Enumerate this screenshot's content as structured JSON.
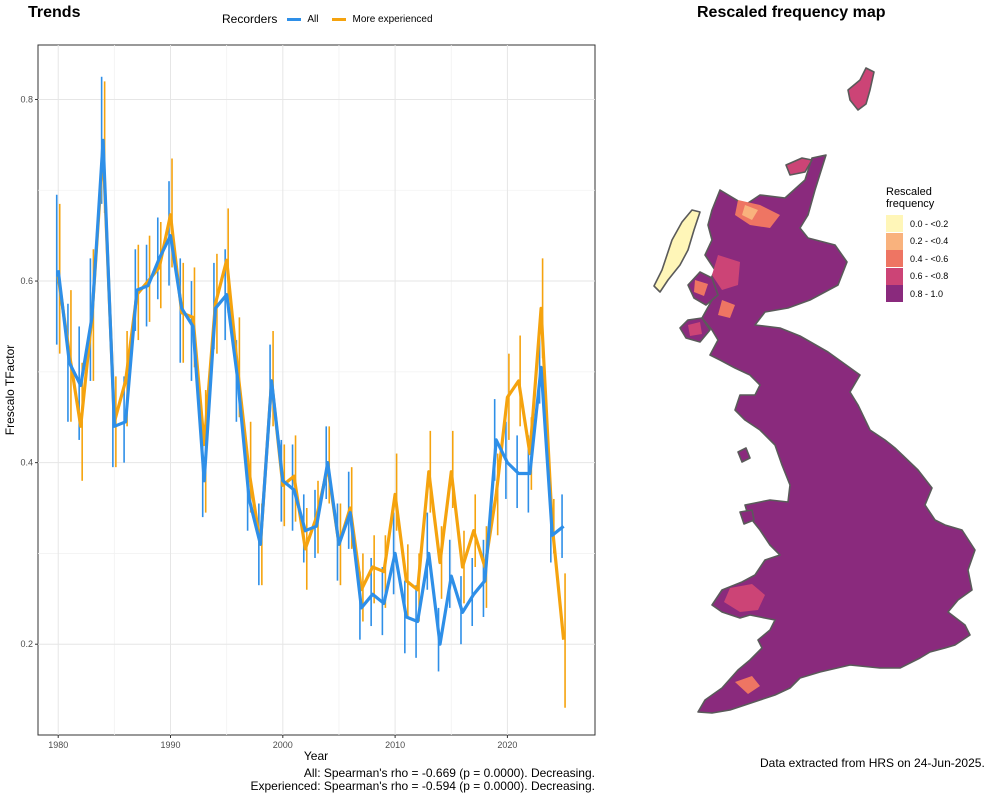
{
  "trends": {
    "title": "Trends",
    "legend": {
      "title": "Recorders",
      "items": [
        {
          "label": "All",
          "color": "#2E8FE8"
        },
        {
          "label": "More experienced",
          "color": "#F5A30E"
        }
      ]
    },
    "stats": {
      "all": "All: Spearman's rho = -0.669 (p = 0.0000). Decreasing.",
      "experienced": "Experienced: Spearman's rho = -0.594 (p = 0.0000). Decreasing."
    }
  },
  "map": {
    "title": "Rescaled frequency map",
    "legend_title": "Rescaled frequency",
    "legend": [
      {
        "label": "0.0 - <0.2",
        "color": "#FFF6B8"
      },
      {
        "label": "0.2 - <0.4",
        "color": "#F9B27D"
      },
      {
        "label": "0.4 - <0.6",
        "color": "#EE7563"
      },
      {
        "label": "0.6 - <0.8",
        "color": "#CC4476"
      },
      {
        "label": "0.8 - 1.0",
        "color": "#8A2A7D"
      }
    ],
    "credit": "Data extracted from HRS on 24-Jun-2025."
  },
  "chart_data": {
    "type": "line",
    "title": "Trends",
    "xlabel": "Year",
    "ylabel": "Frescalo TFactor",
    "xlim": [
      1978.2,
      2027.8
    ],
    "ylim": [
      0.1,
      0.86
    ],
    "xticks": [
      1980,
      1990,
      2000,
      2010,
      2020
    ],
    "yticks": [
      0.2,
      0.4,
      0.6,
      0.8
    ],
    "grid": true,
    "legend_position": "top",
    "x": [
      1980,
      1981,
      1982,
      1983,
      1984,
      1985,
      1986,
      1987,
      1988,
      1989,
      1990,
      1991,
      1992,
      1993,
      1994,
      1995,
      1996,
      1997,
      1998,
      1999,
      2000,
      2001,
      2002,
      2003,
      2004,
      2005,
      2006,
      2007,
      2008,
      2009,
      2010,
      2011,
      2012,
      2013,
      2014,
      2015,
      2016,
      2017,
      2018,
      2019,
      2020,
      2021,
      2022,
      2023,
      2024,
      2025
    ],
    "series": [
      {
        "name": "All",
        "color": "#2E8FE8",
        "values": [
          0.612,
          0.51,
          0.485,
          0.56,
          0.755,
          0.44,
          0.445,
          0.59,
          0.595,
          0.625,
          0.65,
          0.57,
          0.55,
          0.38,
          0.57,
          0.585,
          0.49,
          0.36,
          0.31,
          0.49,
          0.38,
          0.37,
          0.325,
          0.33,
          0.4,
          0.31,
          0.345,
          0.24,
          0.255,
          0.245,
          0.3,
          0.23,
          0.225,
          0.3,
          0.2,
          0.275,
          0.235,
          0.255,
          0.27,
          0.425,
          0.4,
          0.388,
          0.388,
          0.505,
          0.32,
          0.33
        ],
        "lower": [
          0.53,
          0.445,
          0.425,
          0.49,
          0.685,
          0.395,
          0.4,
          0.545,
          0.55,
          0.58,
          0.595,
          0.51,
          0.49,
          0.34,
          0.525,
          0.535,
          0.445,
          0.325,
          0.265,
          0.45,
          0.335,
          0.325,
          0.29,
          0.295,
          0.36,
          0.27,
          0.305,
          0.205,
          0.22,
          0.21,
          0.255,
          0.19,
          0.185,
          0.26,
          0.17,
          0.24,
          0.2,
          0.22,
          0.23,
          0.38,
          0.36,
          0.35,
          0.345,
          0.465,
          0.29,
          0.295
        ],
        "upper": [
          0.695,
          0.575,
          0.55,
          0.625,
          0.825,
          0.495,
          0.495,
          0.635,
          0.64,
          0.67,
          0.71,
          0.625,
          0.6,
          0.425,
          0.62,
          0.635,
          0.535,
          0.4,
          0.355,
          0.53,
          0.425,
          0.42,
          0.365,
          0.37,
          0.44,
          0.355,
          0.39,
          0.28,
          0.295,
          0.285,
          0.345,
          0.27,
          0.265,
          0.345,
          0.24,
          0.315,
          0.275,
          0.295,
          0.315,
          0.47,
          0.445,
          0.43,
          0.43,
          0.545,
          0.355,
          0.365
        ]
      },
      {
        "name": "More experienced",
        "color": "#F5A30E",
        "values": [
          0.605,
          0.52,
          0.44,
          0.56,
          0.745,
          0.445,
          0.49,
          0.585,
          0.6,
          0.615,
          0.673,
          0.565,
          0.56,
          0.42,
          0.575,
          0.623,
          0.5,
          0.39,
          0.31,
          0.49,
          0.375,
          0.385,
          0.305,
          0.34,
          0.395,
          0.31,
          0.35,
          0.26,
          0.285,
          0.28,
          0.365,
          0.27,
          0.26,
          0.39,
          0.29,
          0.39,
          0.285,
          0.325,
          0.285,
          0.365,
          0.472,
          0.49,
          0.41,
          0.57,
          0.33,
          0.205
        ],
        "lower": [
          0.52,
          0.445,
          0.38,
          0.49,
          0.675,
          0.395,
          0.44,
          0.535,
          0.555,
          0.57,
          0.615,
          0.51,
          0.505,
          0.345,
          0.52,
          0.565,
          0.45,
          0.345,
          0.265,
          0.44,
          0.33,
          0.335,
          0.26,
          0.3,
          0.355,
          0.265,
          0.305,
          0.225,
          0.245,
          0.24,
          0.325,
          0.23,
          0.225,
          0.345,
          0.25,
          0.35,
          0.245,
          0.285,
          0.24,
          0.32,
          0.425,
          0.44,
          0.37,
          0.515,
          0.3,
          0.13
        ],
        "upper": [
          0.685,
          0.59,
          0.51,
          0.635,
          0.82,
          0.495,
          0.545,
          0.64,
          0.65,
          0.665,
          0.735,
          0.62,
          0.615,
          0.48,
          0.63,
          0.68,
          0.56,
          0.445,
          0.355,
          0.545,
          0.42,
          0.43,
          0.35,
          0.38,
          0.44,
          0.355,
          0.395,
          0.3,
          0.32,
          0.32,
          0.41,
          0.31,
          0.3,
          0.435,
          0.33,
          0.435,
          0.325,
          0.365,
          0.33,
          0.41,
          0.52,
          0.54,
          0.45,
          0.625,
          0.36,
          0.278
        ]
      }
    ]
  }
}
